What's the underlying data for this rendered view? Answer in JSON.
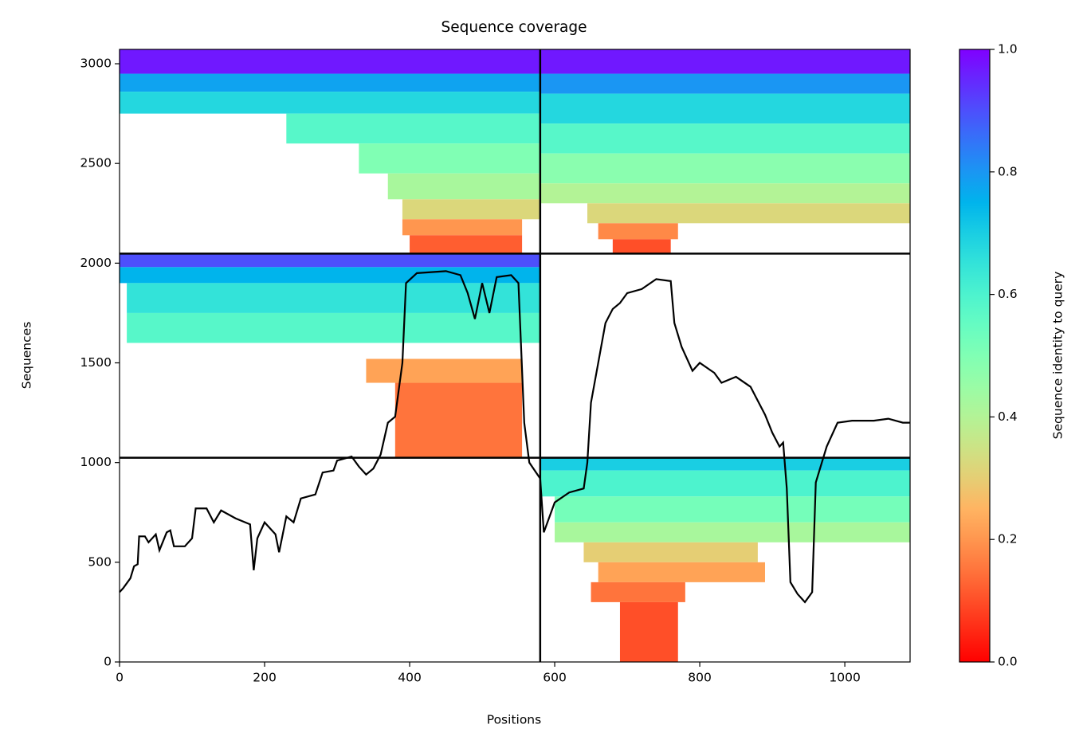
{
  "chart_data": {
    "type": "coverage",
    "title": "Sequence coverage",
    "xlabel": "Positions",
    "ylabel": "Sequences",
    "colorbar_label": "Sequence identity to query",
    "cmap": "rainbow_r",
    "line_color": "#000000",
    "xlim": [
      0,
      1090
    ],
    "ylim": [
      0,
      3072
    ],
    "xticks": [
      0,
      200,
      400,
      600,
      800,
      1000
    ],
    "yticks": [
      0,
      500,
      1000,
      1500,
      2000,
      2500,
      3000
    ],
    "clim": [
      0,
      1
    ],
    "cticks": [
      {
        "value": 0,
        "label": "0.0"
      },
      0.2,
      0.4,
      0.6,
      0.8,
      {
        "value": 1,
        "label": "1.0"
      }
    ],
    "vlines": [
      580
    ],
    "hlines": [
      1024,
      2048
    ],
    "cells": [
      [
        0,
        580,
        2950,
        3072,
        0.97
      ],
      [
        0,
        580,
        2860,
        2950,
        0.78
      ],
      [
        0,
        580,
        2750,
        2860,
        0.68
      ],
      [
        230,
        580,
        2600,
        2750,
        0.58
      ],
      [
        330,
        580,
        2450,
        2600,
        0.5
      ],
      [
        370,
        580,
        2320,
        2450,
        0.42
      ],
      [
        390,
        580,
        2220,
        2320,
        0.32
      ],
      [
        390,
        555,
        2140,
        2220,
        0.2
      ],
      [
        400,
        555,
        2048,
        2140,
        0.12
      ],
      [
        580,
        1090,
        2950,
        3072,
        0.97
      ],
      [
        580,
        1090,
        2850,
        2950,
        0.8
      ],
      [
        580,
        1090,
        2700,
        2850,
        0.68
      ],
      [
        580,
        1090,
        2550,
        2700,
        0.58
      ],
      [
        580,
        1090,
        2400,
        2550,
        0.48
      ],
      [
        580,
        1090,
        2300,
        2400,
        0.4
      ],
      [
        645,
        1090,
        2200,
        2300,
        0.32
      ],
      [
        660,
        770,
        2120,
        2200,
        0.18
      ],
      [
        680,
        760,
        2048,
        2120,
        0.1
      ],
      [
        0,
        580,
        1980,
        2048,
        0.9
      ],
      [
        0,
        580,
        1900,
        1980,
        0.75
      ],
      [
        10,
        580,
        1750,
        1900,
        0.65
      ],
      [
        10,
        580,
        1600,
        1750,
        0.58
      ],
      [
        340,
        555,
        1400,
        1520,
        0.22
      ],
      [
        380,
        555,
        1024,
        1400,
        0.15
      ],
      [
        580,
        1090,
        960,
        1024,
        0.7
      ],
      [
        580,
        1090,
        830,
        960,
        0.6
      ],
      [
        600,
        1090,
        700,
        830,
        0.52
      ],
      [
        600,
        1090,
        600,
        700,
        0.42
      ],
      [
        640,
        880,
        500,
        600,
        0.3
      ],
      [
        660,
        890,
        400,
        500,
        0.22
      ],
      [
        650,
        780,
        300,
        400,
        0.15
      ],
      [
        690,
        770,
        0,
        300,
        0.1
      ]
    ],
    "coverage": {
      "x": [
        0,
        5,
        15,
        20,
        25,
        27,
        35,
        40,
        50,
        55,
        65,
        70,
        75,
        90,
        100,
        105,
        120,
        130,
        140,
        160,
        180,
        185,
        190,
        200,
        215,
        220,
        230,
        240,
        250,
        270,
        280,
        295,
        300,
        320,
        330,
        340,
        350,
        360,
        370,
        380,
        390,
        395,
        410,
        450,
        470,
        480,
        490,
        500,
        510,
        520,
        540,
        550,
        558,
        565,
        580,
        585,
        600,
        620,
        640,
        645,
        650,
        660,
        670,
        680,
        690,
        700,
        720,
        740,
        760,
        765,
        775,
        790,
        800,
        820,
        830,
        850,
        870,
        890,
        900,
        910,
        915,
        920,
        925,
        935,
        945,
        955,
        960,
        975,
        990,
        1010,
        1040,
        1060,
        1080,
        1090
      ],
      "y": [
        350,
        370,
        420,
        480,
        490,
        630,
        630,
        600,
        640,
        560,
        650,
        660,
        580,
        580,
        620,
        770,
        770,
        700,
        760,
        720,
        690,
        460,
        620,
        700,
        640,
        550,
        730,
        700,
        820,
        840,
        950,
        960,
        1010,
        1030,
        980,
        940,
        970,
        1040,
        1200,
        1230,
        1500,
        1900,
        1950,
        1960,
        1940,
        1850,
        1720,
        1900,
        1750,
        1930,
        1940,
        1900,
        1200,
        1000,
        920,
        650,
        800,
        850,
        870,
        1000,
        1300,
        1500,
        1700,
        1770,
        1800,
        1850,
        1870,
        1920,
        1910,
        1700,
        1580,
        1460,
        1500,
        1450,
        1400,
        1430,
        1380,
        1240,
        1150,
        1080,
        1100,
        870,
        400,
        340,
        300,
        350,
        900,
        1080,
        1200,
        1210,
        1210,
        1220,
        1200,
        1200
      ]
    }
  }
}
